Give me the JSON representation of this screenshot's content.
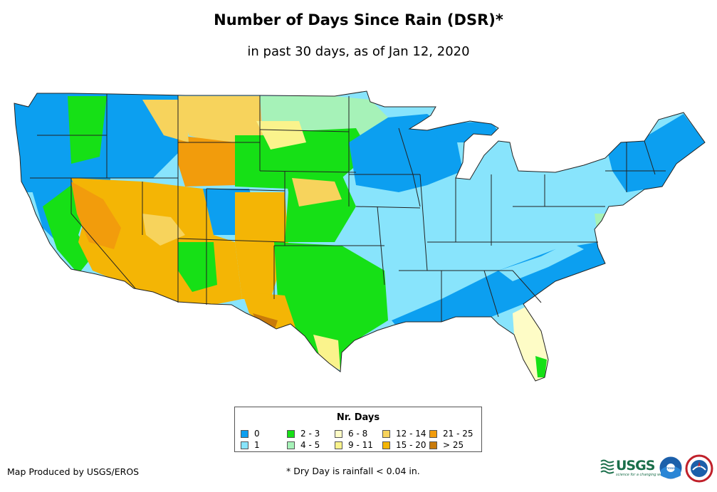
{
  "title": "Number of Days Since Rain (DSR)*",
  "subtitle": "in past 30 days, as of Jan 12, 2020",
  "legend": {
    "title": "Nr. Days",
    "items": [
      {
        "label": "0",
        "color": "#0c9ff0"
      },
      {
        "label": "1",
        "color": "#88e4fc"
      },
      {
        "label": "2 - 3",
        "color": "#16e016"
      },
      {
        "label": "4 - 5",
        "color": "#a6f2b8"
      },
      {
        "label": "6 - 8",
        "color": "#fefcc6"
      },
      {
        "label": "9 - 11",
        "color": "#faf38c"
      },
      {
        "label": "12 - 14",
        "color": "#f7d35c"
      },
      {
        "label": "15 - 20",
        "color": "#f4b505"
      },
      {
        "label": "21 - 25",
        "color": "#f29c0c"
      },
      {
        "label": "> 25",
        "color": "#c87a0a"
      }
    ]
  },
  "credit": "Map Produced by USGS/EROS",
  "footnote": "* Dry Day is rainfall < 0.04 in.",
  "logos": {
    "usgs": "USGS",
    "usgs_tagline": "science for a changing world",
    "noaa": "noaa"
  }
}
